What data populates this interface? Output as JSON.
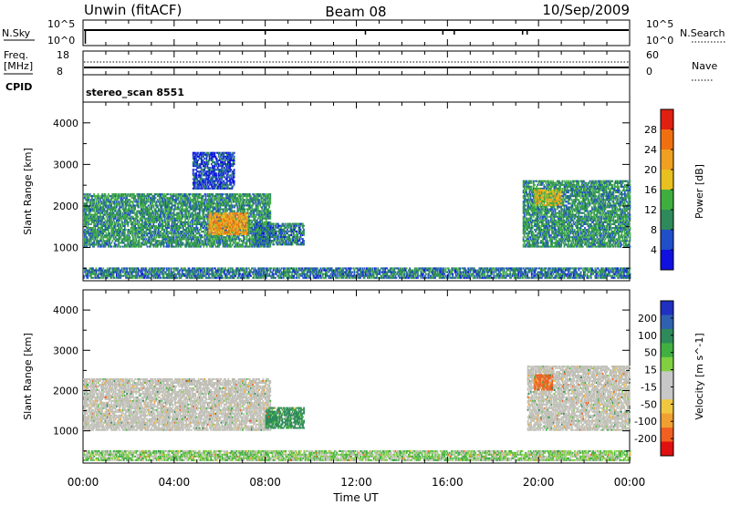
{
  "header": {
    "site": "Unwin (fitACF)",
    "beam": "Beam 08",
    "date": "10/Sep/2009"
  },
  "status": {
    "nsky_label": "N.Sky",
    "nsky_ticks": [
      "10^5",
      "10^0"
    ],
    "nsearch_label": "N.Search",
    "nsearch_ticks": [
      "10^5",
      "10^0"
    ],
    "freq_label_line1": "Freq.",
    "freq_label_line2": "[MHz]",
    "freq_ticks": [
      "18",
      "8"
    ],
    "nave_label": "Nave",
    "nave_ticks": [
      "60",
      "0"
    ],
    "cpid_label": "CPID",
    "cpid_value": "stereo_scan 8551"
  },
  "colors": {
    "power_scale": [
      "#1010e0",
      "#2050c8",
      "#2e8a5a",
      "#3fae3f",
      "#e8c020",
      "#f0a020",
      "#f07010",
      "#e02010"
    ],
    "velocity_scale": [
      "#e01010",
      "#f06020",
      "#f0a030",
      "#f0c840",
      "#c8c8c8",
      "#c8c8c8",
      "#80d040",
      "#40b040",
      "#2e8a5a",
      "#3060b0",
      "#2030c0"
    ],
    "ground_scatter": "#c0c0b8"
  },
  "chart_data": [
    {
      "type": "heatmap",
      "name_of_parameter": "Power",
      "ylabel": "Slant Range [km]",
      "yticks": [
        "1000",
        "2000",
        "3000",
        "4000"
      ],
      "ylim": [
        200,
        4500
      ],
      "xlim_hours": [
        0,
        24
      ],
      "colorbar_label": "Power [dB]",
      "colorbar_ticks": [
        "4",
        "8",
        "12",
        "16",
        "20",
        "24",
        "28"
      ],
      "colorbar_range": [
        0,
        30
      ],
      "scatter_regions": [
        {
          "t_start": 0.0,
          "t_end": 8.2,
          "range_start_km": 1000,
          "range_end_km": 2300,
          "typical_dB": 10
        },
        {
          "t_start": 5.5,
          "t_end": 7.2,
          "range_start_km": 1300,
          "range_end_km": 1800,
          "typical_dB": 21
        },
        {
          "t_start": 4.8,
          "t_end": 6.6,
          "range_start_km": 2400,
          "range_end_km": 3300,
          "typical_dB": 5
        },
        {
          "t_start": 7.5,
          "t_end": 9.7,
          "range_start_km": 1050,
          "range_end_km": 1550,
          "typical_dB": 8
        },
        {
          "t_start": 19.3,
          "t_end": 24.0,
          "range_start_km": 1000,
          "range_end_km": 2600,
          "typical_dB": 10
        },
        {
          "t_start": 19.8,
          "t_end": 21.0,
          "range_start_km": 2000,
          "range_end_km": 2400,
          "typical_dB": 17
        },
        {
          "t_start": 0.0,
          "t_end": 24.0,
          "range_start_km": 250,
          "range_end_km": 500,
          "typical_dB": 8
        }
      ]
    },
    {
      "type": "heatmap",
      "name_of_parameter": "Velocity",
      "ylabel": "Slant Range [km]",
      "yticks": [
        "1000",
        "2000",
        "3000",
        "4000"
      ],
      "ylim": [
        200,
        4500
      ],
      "xlim_hours": [
        0,
        24
      ],
      "xlabel": "Time UT",
      "xticks": [
        "00:00",
        "04:00",
        "08:00",
        "12:00",
        "16:00",
        "20:00",
        "00:00"
      ],
      "colorbar_label": "Velocity [m s^-1]",
      "colorbar_ticks": [
        "200",
        "100",
        "50",
        "15",
        "-15",
        "-50",
        "-100",
        "-200"
      ],
      "scatter_regions": [
        {
          "t_start": 0.0,
          "t_end": 8.2,
          "range_start_km": 1000,
          "range_end_km": 2300,
          "typical_velocity": 0
        },
        {
          "t_start": 8.0,
          "t_end": 9.7,
          "range_start_km": 1050,
          "range_end_km": 1550,
          "typical_velocity": 60
        },
        {
          "t_start": 19.5,
          "t_end": 24.0,
          "range_start_km": 1000,
          "range_end_km": 2600,
          "typical_velocity": 0
        },
        {
          "t_start": 19.8,
          "t_end": 20.6,
          "range_start_km": 2000,
          "range_end_km": 2400,
          "typical_velocity": -60
        },
        {
          "t_start": 0.0,
          "t_end": 24.0,
          "range_start_km": 250,
          "range_end_km": 500,
          "typical_velocity": 20
        }
      ]
    }
  ]
}
